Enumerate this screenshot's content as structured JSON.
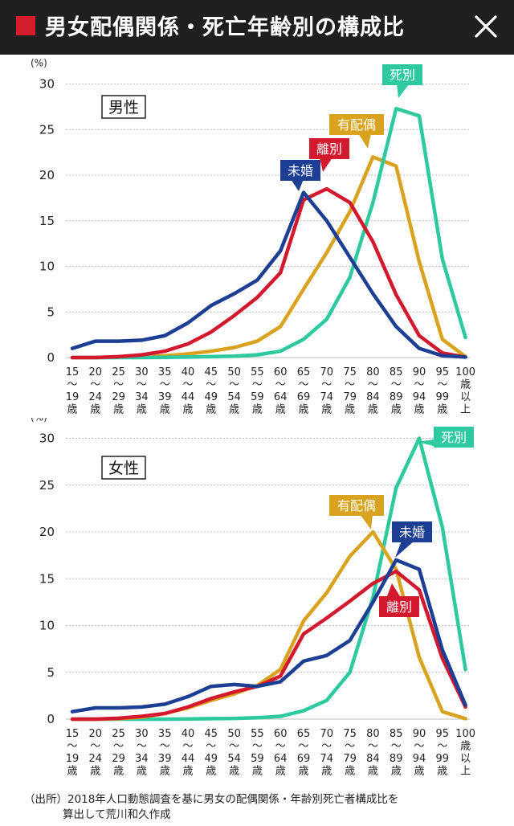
{
  "header": {
    "title": "男女配偶関係・死亡年齢別の構成比",
    "close_icon": "close-icon",
    "accent": "#d31d2a",
    "background": "#1f1f1f"
  },
  "colors": {
    "未婚": "#1c3f94",
    "離別": "#d3192d",
    "有配偶": "#d9a21f",
    "死別": "#2ec99e"
  },
  "source": {
    "line1": "（出所）2018年人口動態調査を基に男女の配偶関係・年齢別死亡者構成比を",
    "line2": "算出して荒川和久作成"
  },
  "chart_data": [
    {
      "type": "line",
      "title": "男性",
      "yunit": "(%)",
      "ylim": [
        0,
        30
      ],
      "yticks": [
        0,
        5,
        10,
        15,
        20,
        25,
        30
      ],
      "grid": true,
      "categories": [
        [
          "15",
          "～",
          "19",
          "歳"
        ],
        [
          "20",
          "～",
          "24",
          "歳"
        ],
        [
          "25",
          "～",
          "29",
          "歳"
        ],
        [
          "30",
          "～",
          "34",
          "歳"
        ],
        [
          "35",
          "～",
          "39",
          "歳"
        ],
        [
          "40",
          "～",
          "44",
          "歳"
        ],
        [
          "45",
          "～",
          "49",
          "歳"
        ],
        [
          "50",
          "～",
          "54",
          "歳"
        ],
        [
          "55",
          "～",
          "59",
          "歳"
        ],
        [
          "60",
          "～",
          "64",
          "歳"
        ],
        [
          "65",
          "～",
          "69",
          "歳"
        ],
        [
          "70",
          "～",
          "74",
          "歳"
        ],
        [
          "75",
          "～",
          "79",
          "歳"
        ],
        [
          "80",
          "～",
          "84",
          "歳"
        ],
        [
          "85",
          "～",
          "89",
          "歳"
        ],
        [
          "90",
          "～",
          "94",
          "歳"
        ],
        [
          "95",
          "～",
          "99",
          "歳"
        ],
        [
          "100",
          "歳",
          "以",
          "上"
        ]
      ],
      "series": [
        {
          "name": "有配偶",
          "values": [
            0,
            0,
            0.05,
            0.1,
            0.2,
            0.4,
            0.7,
            1.1,
            1.8,
            3.4,
            7.5,
            11.5,
            16.0,
            22.0,
            21.0,
            10.5,
            2.0,
            0.1
          ]
        },
        {
          "name": "死別",
          "values": [
            0,
            0,
            0,
            0,
            0.02,
            0.05,
            0.1,
            0.15,
            0.3,
            0.7,
            2.0,
            4.2,
            8.8,
            17.0,
            27.3,
            26.5,
            10.8,
            2.2
          ]
        },
        {
          "name": "離別",
          "values": [
            0,
            0,
            0.1,
            0.3,
            0.7,
            1.5,
            2.8,
            4.6,
            6.6,
            9.3,
            17.3,
            18.5,
            17.0,
            12.7,
            6.9,
            2.4,
            0.5,
            0.05
          ]
        },
        {
          "name": "未婚",
          "values": [
            1.0,
            1.8,
            1.8,
            1.9,
            2.4,
            3.8,
            5.7,
            7.0,
            8.5,
            11.7,
            18.1,
            15.0,
            11.0,
            7.0,
            3.4,
            1.0,
            0.2,
            0.05
          ]
        }
      ],
      "callouts": [
        "未婚",
        "離別",
        "有配偶",
        "死別"
      ]
    },
    {
      "type": "line",
      "title": "女性",
      "yunit": "(%)",
      "ylim": [
        0,
        30
      ],
      "yticks": [
        0,
        5,
        10,
        15,
        20,
        25,
        30
      ],
      "grid": true,
      "categories": [
        [
          "15",
          "～",
          "19",
          "歳"
        ],
        [
          "20",
          "～",
          "24",
          "歳"
        ],
        [
          "25",
          "～",
          "29",
          "歳"
        ],
        [
          "30",
          "～",
          "34",
          "歳"
        ],
        [
          "35",
          "～",
          "39",
          "歳"
        ],
        [
          "40",
          "～",
          "44",
          "歳"
        ],
        [
          "45",
          "～",
          "49",
          "歳"
        ],
        [
          "50",
          "～",
          "54",
          "歳"
        ],
        [
          "55",
          "～",
          "59",
          "歳"
        ],
        [
          "60",
          "～",
          "64",
          "歳"
        ],
        [
          "65",
          "～",
          "69",
          "歳"
        ],
        [
          "70",
          "～",
          "74",
          "歳"
        ],
        [
          "75",
          "～",
          "79",
          "歳"
        ],
        [
          "80",
          "～",
          "84",
          "歳"
        ],
        [
          "85",
          "～",
          "89",
          "歳"
        ],
        [
          "90",
          "～",
          "94",
          "歳"
        ],
        [
          "95",
          "～",
          "99",
          "歳"
        ],
        [
          "100",
          "歳",
          "以",
          "上"
        ]
      ],
      "series": [
        {
          "name": "死別",
          "values": [
            0,
            0,
            0,
            0,
            0,
            0.02,
            0.05,
            0.08,
            0.15,
            0.3,
            0.9,
            2.0,
            5.0,
            13.0,
            24.7,
            30.0,
            20.5,
            5.3
          ]
        },
        {
          "name": "有配偶",
          "values": [
            0,
            0,
            0.05,
            0.2,
            0.6,
            1.2,
            2.0,
            2.7,
            3.6,
            5.3,
            10.5,
            13.5,
            17.4,
            20.0,
            16.0,
            6.6,
            0.8,
            0.05
          ]
        },
        {
          "name": "離別",
          "values": [
            0,
            0,
            0.1,
            0.3,
            0.6,
            1.3,
            2.2,
            2.9,
            3.5,
            4.6,
            9.1,
            10.8,
            12.6,
            14.5,
            15.8,
            13.8,
            6.5,
            1.3
          ]
        },
        {
          "name": "未婚",
          "values": [
            0.8,
            1.2,
            1.2,
            1.3,
            1.6,
            2.4,
            3.5,
            3.7,
            3.5,
            4.0,
            6.2,
            6.8,
            8.4,
            12.5,
            17.0,
            16.0,
            7.4,
            1.5
          ]
        }
      ],
      "callouts": [
        "死別",
        "有配偶",
        "未婚",
        "離別"
      ]
    }
  ]
}
